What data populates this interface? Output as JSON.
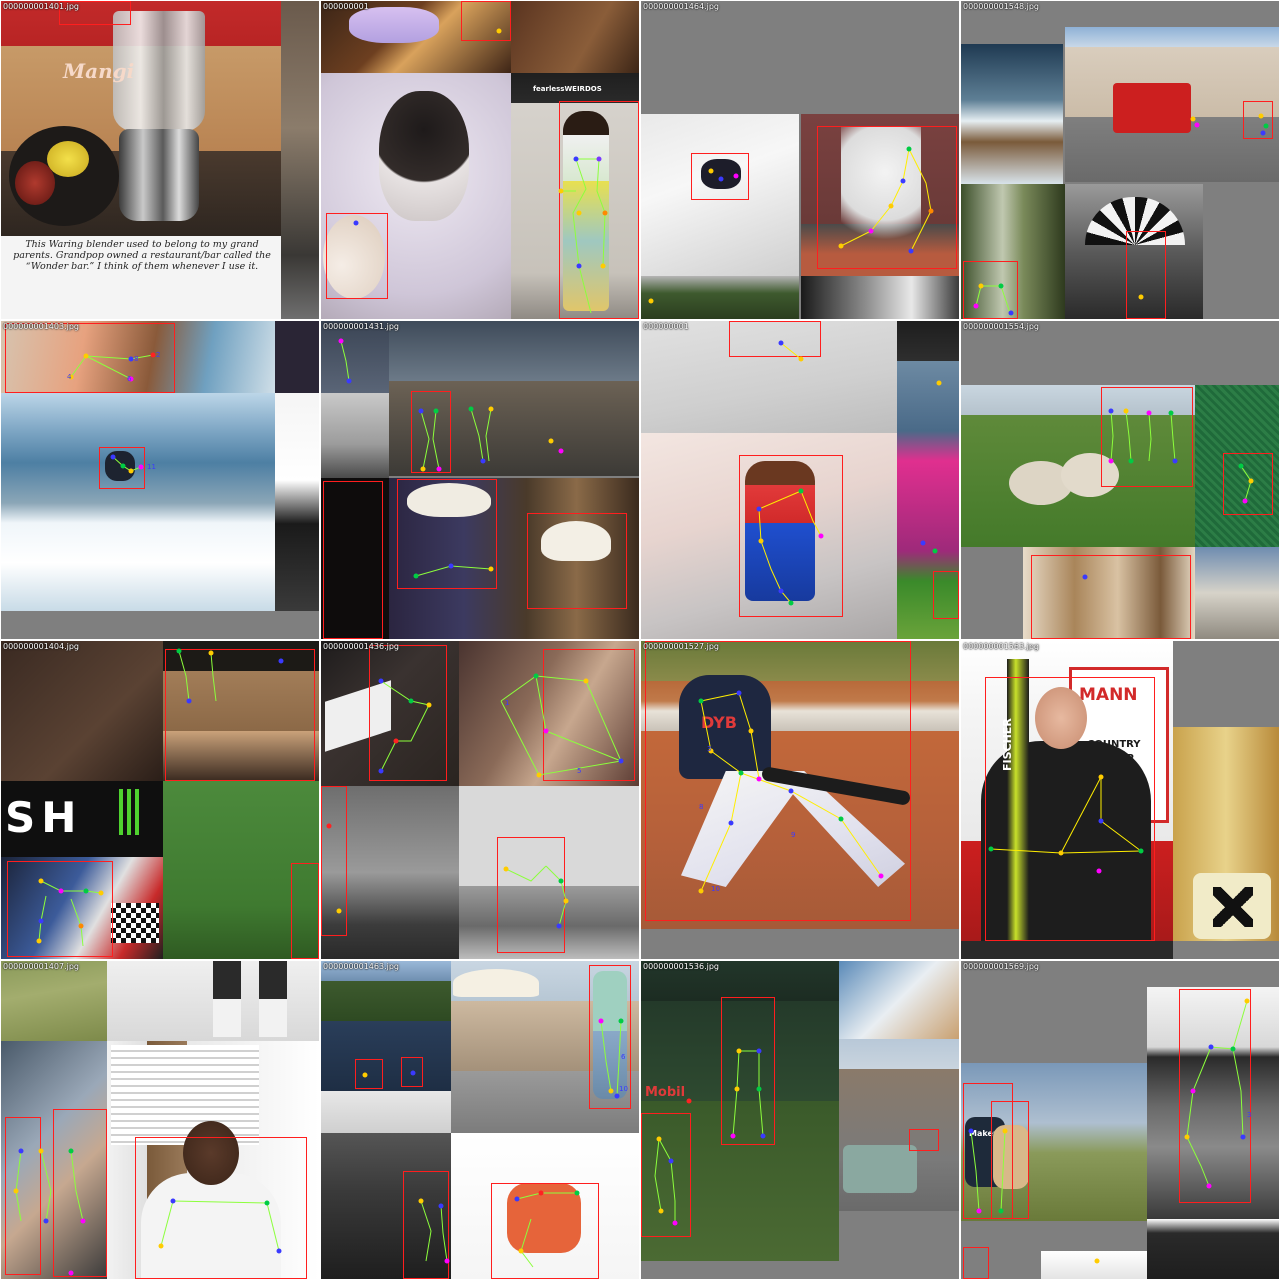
{
  "tiles": [
    {
      "id": "t1",
      "label": "000000001401.jpg",
      "caption": "This Waring blender used to belong to my grand parents. Grandpop owned a restaurant/bar called the “Wonder bar.” I think of them whenever I use it.",
      "sign": "Mangi"
    },
    {
      "id": "t2",
      "label": "000000001",
      "sign": "fearlessWEIRDOS"
    },
    {
      "id": "t3",
      "label": "000000001464.jpg"
    },
    {
      "id": "t4",
      "label": "000000001548.jpg"
    },
    {
      "id": "t5",
      "label": "000000001403.jpg",
      "nums": [
        "4",
        "6",
        "8",
        "2",
        "11"
      ]
    },
    {
      "id": "t6",
      "label": "000000001431.jpg"
    },
    {
      "id": "t7",
      "label": "000000001"
    },
    {
      "id": "t8",
      "label": "000000001554.jpg"
    },
    {
      "id": "t9",
      "label": "000000001404.jpg",
      "sign": "SH"
    },
    {
      "id": "t10",
      "label": "000000001436.jpg",
      "nums": [
        "1",
        "5"
      ]
    },
    {
      "id": "t11",
      "label": "000000001527.jpg",
      "nums": [
        "3",
        "8",
        "9",
        "10"
      ],
      "sign": "DYB"
    },
    {
      "id": "t12",
      "label": "000000001563.jpg",
      "sign": "MANN",
      "sign2": "FISCHER",
      "sign3": "COUNTRY",
      "sign4": "CUP"
    },
    {
      "id": "t13",
      "label": "000000001407.jpg"
    },
    {
      "id": "t14",
      "label": "000000001463.jpg",
      "nums": [
        "6",
        "10"
      ]
    },
    {
      "id": "t15",
      "label": "000000001536.jpg",
      "sign": "Mobil"
    },
    {
      "id": "t16",
      "label": "000000001569.jpg",
      "nums": [
        "3"
      ],
      "sign": "MakerS"
    }
  ],
  "colors": {
    "bbox": "#ff1e1e",
    "gap": "#7f7f7f",
    "keypoint_blue": "#3a3aff"
  }
}
